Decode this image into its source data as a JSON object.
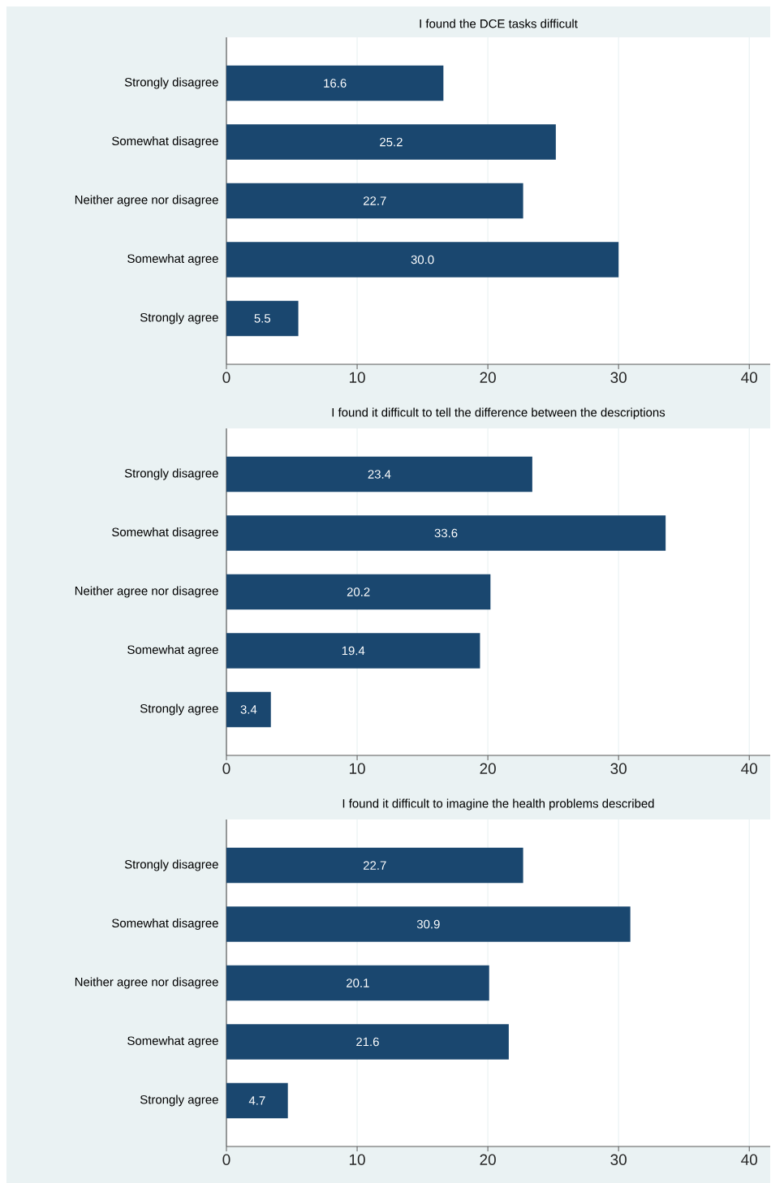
{
  "chart_data": [
    {
      "type": "bar",
      "orientation": "horizontal",
      "title": "I found the DCE tasks difficult",
      "categories": [
        "Strongly disagree",
        "Somewhat disagree",
        "Neither agree nor disagree",
        "Somewhat agree",
        "Strongly agree"
      ],
      "values": [
        16.6,
        25.2,
        22.7,
        30.0,
        5.5
      ],
      "value_labels": [
        "16.6",
        "25.2",
        "22.7",
        "30.0",
        "5.5"
      ],
      "color": "#1a476f",
      "xlim": [
        0,
        41.6
      ],
      "xticks": [
        0,
        10,
        20,
        30,
        40
      ],
      "grid": "x"
    },
    {
      "type": "bar",
      "orientation": "horizontal",
      "title": "I found it difficult to tell the difference between the descriptions",
      "categories": [
        "Strongly disagree",
        "Somewhat disagree",
        "Neither agree nor disagree",
        "Somewhat agree",
        "Strongly agree"
      ],
      "values": [
        23.4,
        33.6,
        20.2,
        19.4,
        3.4
      ],
      "value_labels": [
        "23.4",
        "33.6",
        "20.2",
        "19.4",
        "3.4"
      ],
      "color": "#1a476f",
      "xlim": [
        0,
        41.6
      ],
      "xticks": [
        0,
        10,
        20,
        30,
        40
      ],
      "grid": "x"
    },
    {
      "type": "bar",
      "orientation": "horizontal",
      "title": "I found it difficult to imagine the health problems described",
      "categories": [
        "Strongly disagree",
        "Somewhat disagree",
        "Neither agree nor disagree",
        "Somewhat agree",
        "Strongly agree"
      ],
      "values": [
        22.7,
        30.9,
        20.1,
        21.6,
        4.7
      ],
      "value_labels": [
        "22.7",
        "30.9",
        "20.1",
        "21.6",
        "4.7"
      ],
      "color": "#1a476f",
      "xlim": [
        0,
        41.6
      ],
      "xticks": [
        0,
        10,
        20,
        30,
        40
      ],
      "grid": "x"
    }
  ]
}
